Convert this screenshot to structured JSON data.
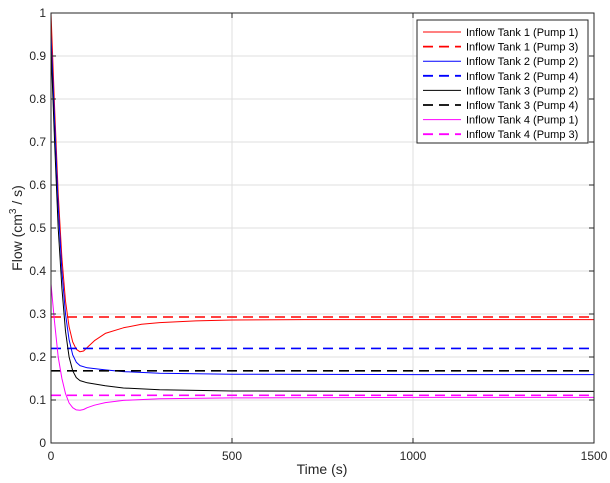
{
  "chart_data": {
    "type": "line",
    "xlabel": "Time (s)",
    "ylabel_main": "Flow (cm",
    "ylabel_sup": "3",
    "ylabel_tail": " / s)",
    "xlim": [
      0,
      1500
    ],
    "ylim": [
      0,
      1
    ],
    "xticks": [
      0,
      500,
      1000,
      1500
    ],
    "yticks": [
      0,
      0.1,
      0.2,
      0.3,
      0.4,
      0.5,
      0.6,
      0.7,
      0.8,
      0.9,
      1
    ],
    "xtick_labels": [
      "0",
      "500",
      "1000",
      "1500"
    ],
    "ytick_labels": [
      "0",
      "0.1",
      "0.2",
      "0.3",
      "0.4",
      "0.5",
      "0.6",
      "0.7",
      "0.8",
      "0.9",
      "1"
    ],
    "grid": true,
    "legend_position": "top-right",
    "series": [
      {
        "name": "Inflow Tank 1 (Pump 1)",
        "color": "#ff0000",
        "dash": "solid",
        "points": [
          [
            0,
            1.0
          ],
          [
            10,
            0.78
          ],
          [
            20,
            0.58
          ],
          [
            30,
            0.43
          ],
          [
            40,
            0.33
          ],
          [
            50,
            0.27
          ],
          [
            60,
            0.235
          ],
          [
            70,
            0.218
          ],
          [
            80,
            0.212
          ],
          [
            90,
            0.214
          ],
          [
            100,
            0.222
          ],
          [
            120,
            0.238
          ],
          [
            150,
            0.255
          ],
          [
            200,
            0.268
          ],
          [
            250,
            0.276
          ],
          [
            300,
            0.28
          ],
          [
            400,
            0.284
          ],
          [
            500,
            0.286
          ],
          [
            700,
            0.287
          ],
          [
            1000,
            0.287
          ],
          [
            1500,
            0.287
          ]
        ]
      },
      {
        "name": "Inflow Tank 1 (Pump 3)",
        "color": "#ff0000",
        "dash": "dashed",
        "points": [
          [
            0,
            0.293
          ],
          [
            1500,
            0.293
          ]
        ]
      },
      {
        "name": "Inflow Tank 2 (Pump 2)",
        "color": "#0000ff",
        "dash": "solid",
        "points": [
          [
            0,
            0.95
          ],
          [
            10,
            0.75
          ],
          [
            20,
            0.55
          ],
          [
            30,
            0.4
          ],
          [
            40,
            0.3
          ],
          [
            50,
            0.24
          ],
          [
            60,
            0.205
          ],
          [
            70,
            0.188
          ],
          [
            80,
            0.18
          ],
          [
            100,
            0.175
          ],
          [
            150,
            0.17
          ],
          [
            200,
            0.166
          ],
          [
            300,
            0.162
          ],
          [
            500,
            0.16
          ],
          [
            1000,
            0.159
          ],
          [
            1500,
            0.159
          ]
        ]
      },
      {
        "name": "Inflow Tank 2 (Pump 4)",
        "color": "#0000ff",
        "dash": "dashed",
        "points": [
          [
            0,
            0.22
          ],
          [
            1500,
            0.22
          ]
        ]
      },
      {
        "name": "Inflow Tank 3 (Pump 2)",
        "color": "#000000",
        "dash": "solid",
        "points": [
          [
            0,
            0.92
          ],
          [
            10,
            0.7
          ],
          [
            20,
            0.5
          ],
          [
            30,
            0.36
          ],
          [
            40,
            0.26
          ],
          [
            50,
            0.2
          ],
          [
            60,
            0.168
          ],
          [
            70,
            0.152
          ],
          [
            80,
            0.145
          ],
          [
            100,
            0.14
          ],
          [
            150,
            0.133
          ],
          [
            200,
            0.128
          ],
          [
            300,
            0.124
          ],
          [
            500,
            0.121
          ],
          [
            1000,
            0.12
          ],
          [
            1500,
            0.12
          ]
        ]
      },
      {
        "name": "Inflow Tank 3 (Pump 4)",
        "color": "#000000",
        "dash": "dashed",
        "points": [
          [
            0,
            0.168
          ],
          [
            1500,
            0.168
          ]
        ]
      },
      {
        "name": "Inflow Tank 4 (Pump 1)",
        "color": "#ff00ff",
        "dash": "solid",
        "points": [
          [
            0,
            0.37
          ],
          [
            10,
            0.28
          ],
          [
            20,
            0.2
          ],
          [
            30,
            0.15
          ],
          [
            40,
            0.115
          ],
          [
            50,
            0.093
          ],
          [
            60,
            0.082
          ],
          [
            70,
            0.077
          ],
          [
            80,
            0.076
          ],
          [
            90,
            0.078
          ],
          [
            100,
            0.082
          ],
          [
            120,
            0.088
          ],
          [
            150,
            0.094
          ],
          [
            200,
            0.099
          ],
          [
            300,
            0.103
          ],
          [
            500,
            0.105
          ],
          [
            1000,
            0.106
          ],
          [
            1500,
            0.106
          ]
        ]
      },
      {
        "name": "Inflow Tank 4 (Pump 3)",
        "color": "#ff00ff",
        "dash": "dashed",
        "points": [
          [
            0,
            0.111
          ],
          [
            1500,
            0.111
          ]
        ]
      }
    ]
  }
}
